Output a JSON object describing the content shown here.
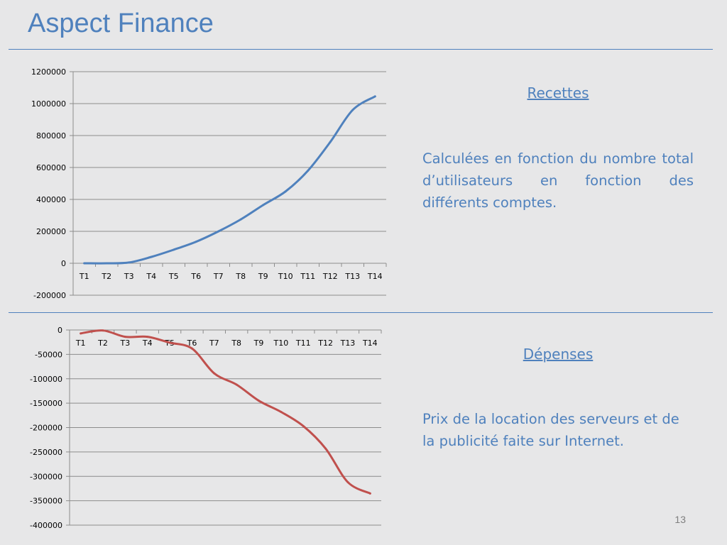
{
  "slide": {
    "title": "Aspect Finance",
    "page_number": "13"
  },
  "sections": {
    "recettes": {
      "heading": "Recettes",
      "text": "Calculées en fonction du nombre total d’utilisateurs en fonction des différents comptes."
    },
    "depenses": {
      "heading": "Dépenses",
      "text": "Prix de la location des serveurs et de la publicité faite sur Internet."
    }
  },
  "chart_data": [
    {
      "type": "line",
      "categories": [
        "T1",
        "T2",
        "T3",
        "T4",
        "T5",
        "T6",
        "T7",
        "T8",
        "T9",
        "T10",
        "T11",
        "T12",
        "T13",
        "T14"
      ],
      "series": [
        {
          "values": [
            0,
            0,
            5000,
            40000,
            85000,
            135000,
            200000,
            275000,
            365000,
            450000,
            580000,
            760000,
            960000,
            1045000
          ],
          "color": "#4f81bd"
        }
      ],
      "ylim": [
        -200000,
        1200000
      ],
      "yticks": [
        -200000,
        0,
        200000,
        400000,
        600000,
        800000,
        1000000,
        1200000
      ],
      "ytick_labels": [
        "-200000",
        "0",
        "200000",
        "400000",
        "600000",
        "800000",
        "1000000",
        "1200000"
      ],
      "grid": true,
      "legend": "none"
    },
    {
      "type": "line",
      "categories": [
        "T1",
        "T2",
        "T3",
        "T4",
        "T5",
        "T6",
        "T7",
        "T8",
        "T9",
        "T10",
        "T11",
        "T12",
        "T13",
        "T14"
      ],
      "series": [
        {
          "values": [
            -7000,
            -1000,
            -14000,
            -14000,
            -26000,
            -38000,
            -89000,
            -112000,
            -145000,
            -168000,
            -197000,
            -243000,
            -312000,
            -335000
          ],
          "color": "#c0504d"
        }
      ],
      "ylim": [
        -400000,
        0
      ],
      "yticks": [
        -400000,
        -350000,
        -300000,
        -250000,
        -200000,
        -150000,
        -100000,
        -50000,
        0
      ],
      "ytick_labels": [
        "-400000",
        "-350000",
        "-300000",
        "-250000",
        "-200000",
        "-150000",
        "-100000",
        "-50000",
        "0"
      ],
      "grid": true,
      "legend": "none"
    }
  ]
}
